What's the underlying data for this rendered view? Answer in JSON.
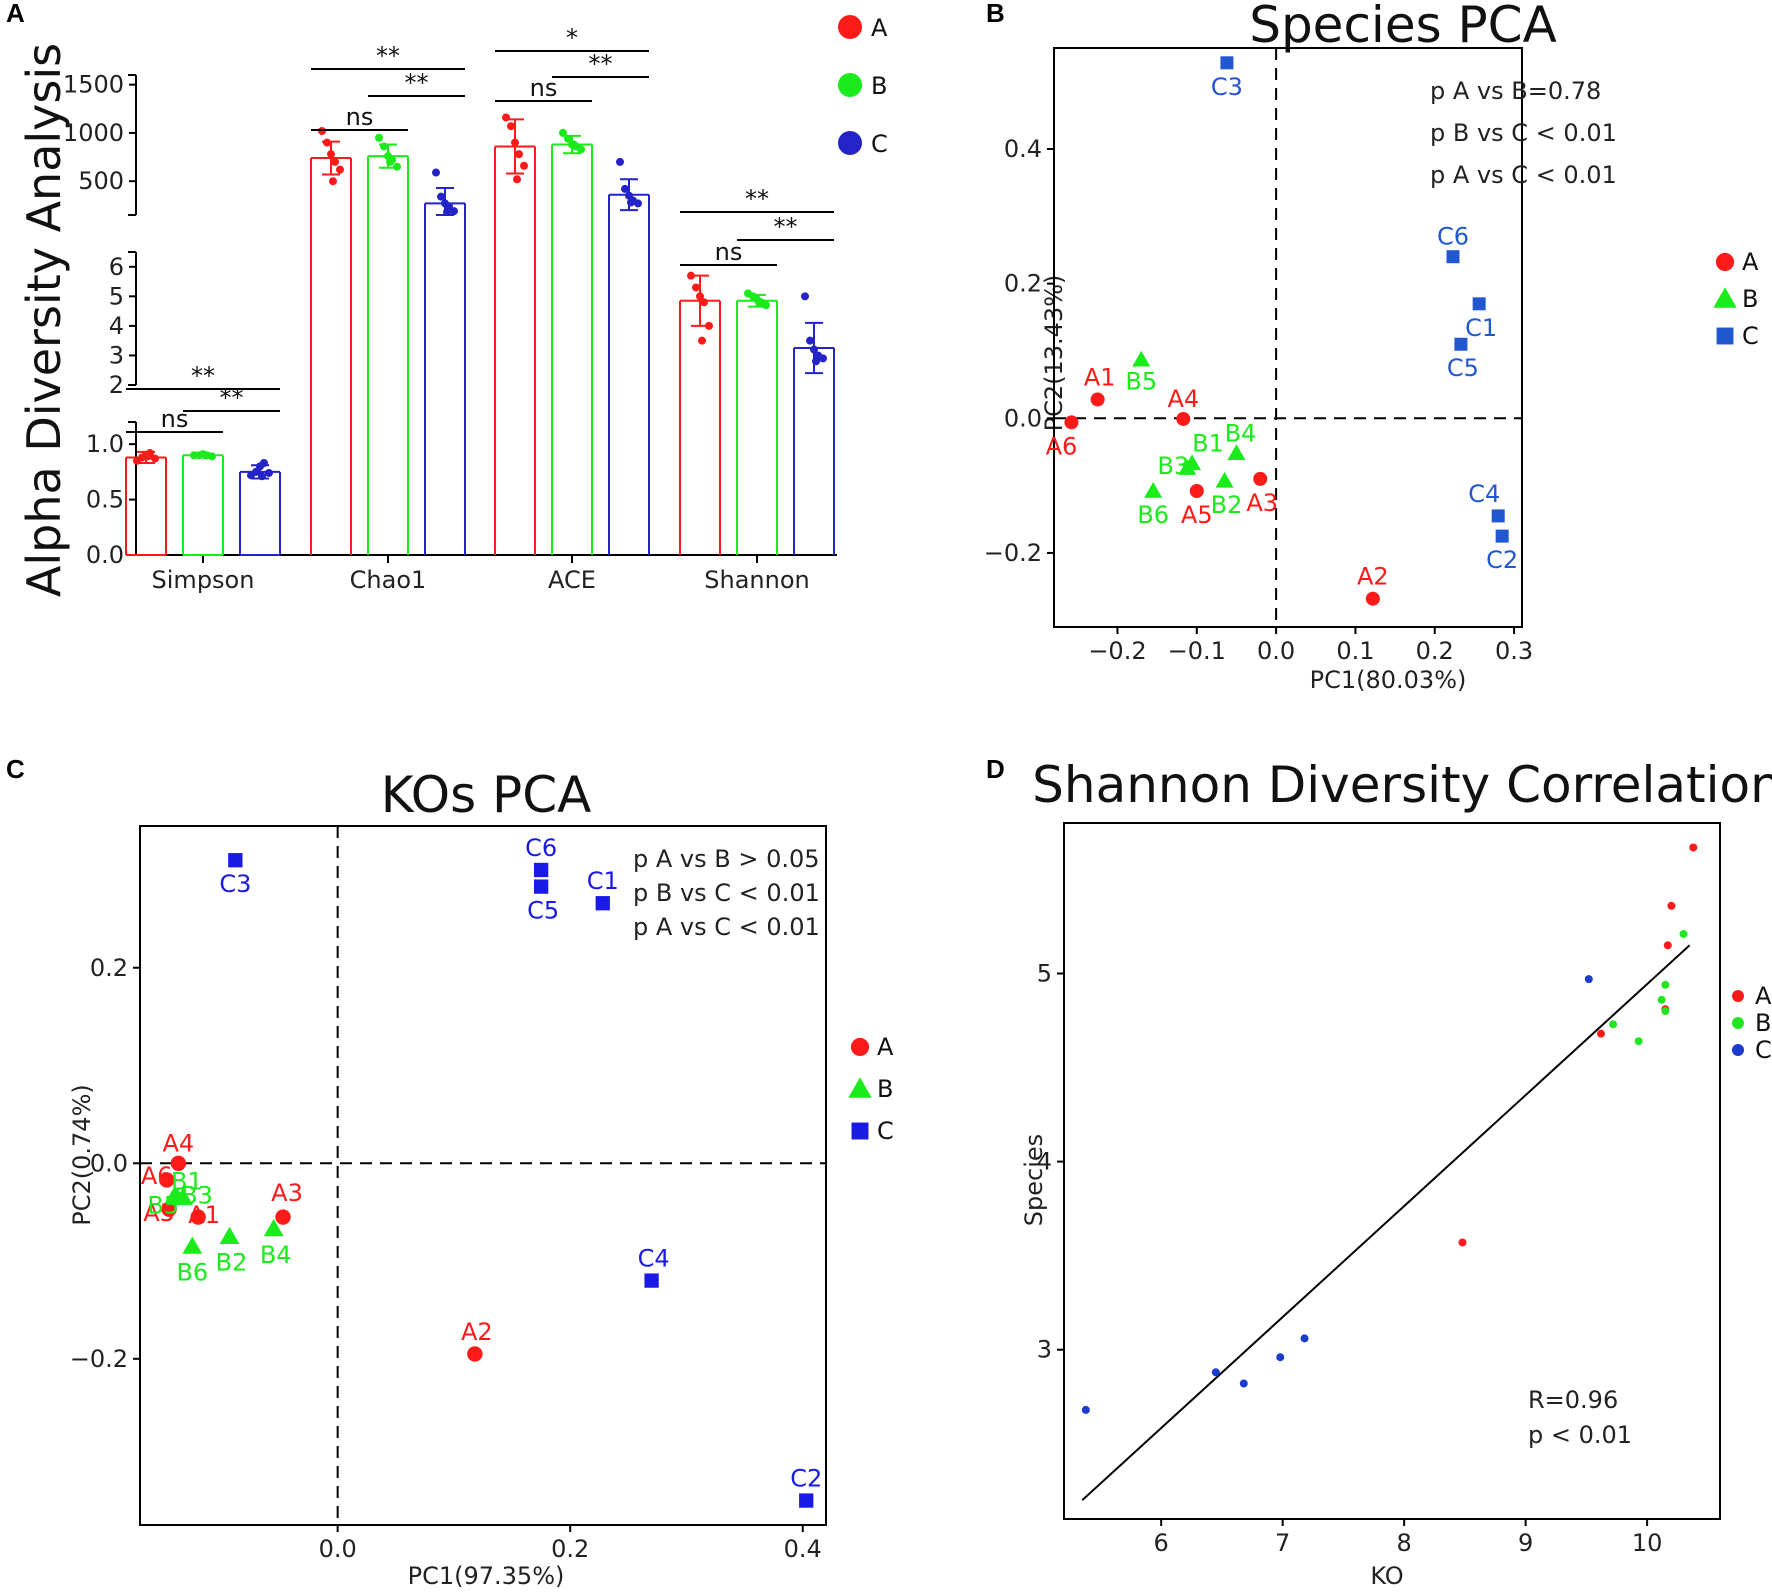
{
  "colors": {
    "A": "#ff1a1a",
    "B": "#1aeb1a",
    "C": "#1a1acc",
    "C_light": "#1a56d6"
  },
  "chart_data": [
    {
      "panel_label": "A",
      "type": "bar",
      "ylabel": "Alpha Diversity Analysis",
      "categories": [
        "Simpson",
        "Chao1",
        "ACE",
        "Shannon"
      ],
      "groups": [
        "A",
        "B",
        "C"
      ],
      "segments": [
        {
          "name": "low",
          "range": [
            0,
            1.2
          ],
          "ticks": [
            "0.0",
            "0.5",
            "1.0"
          ],
          "tick_values": [
            0,
            0.5,
            1.0
          ]
        },
        {
          "name": "mid",
          "range": [
            2,
            6.5
          ],
          "ticks": [
            "2",
            "3",
            "4",
            "5",
            "6"
          ],
          "tick_values": [
            2,
            3,
            4,
            5,
            6
          ]
        },
        {
          "name": "high",
          "range": [
            150,
            1600
          ],
          "ticks": [
            "500",
            "1000",
            "1500"
          ],
          "tick_values": [
            500,
            1000,
            1500
          ]
        }
      ],
      "series": [
        {
          "category": "Simpson",
          "segment": "low",
          "means": [
            0.88,
            0.9,
            0.75
          ],
          "sd": [
            0.05,
            0.01,
            0.06
          ],
          "points": [
            [
              0.85,
              0.88,
              0.9,
              0.92,
              0.87,
              0.89
            ],
            [
              0.9,
              0.9,
              0.91,
              0.9,
              0.89,
              0.9
            ],
            [
              0.72,
              0.75,
              0.8,
              0.83,
              0.74,
              0.71
            ]
          ]
        },
        {
          "category": "Chao1",
          "segment": "high",
          "means": [
            740,
            760,
            270
          ],
          "sd": [
            170,
            120,
            160
          ],
          "points": [
            [
              1020,
              900,
              780,
              700,
              620,
              500
            ],
            [
              950,
              860,
              760,
              720,
              650,
              700
            ],
            [
              590,
              340,
              270,
              240,
              190,
              180
            ]
          ]
        },
        {
          "category": "ACE",
          "segment": "high",
          "means": [
            860,
            880,
            360
          ],
          "sd": [
            280,
            90,
            160
          ],
          "points": [
            [
              1160,
              1070,
              900,
              780,
              660,
              520
            ],
            [
              1000,
              940,
              880,
              860,
              830,
              880
            ],
            [
              700,
              420,
              350,
              300,
              270,
              280
            ]
          ]
        },
        {
          "category": "Shannon",
          "segment": "mid",
          "means": [
            4.85,
            4.85,
            3.25
          ],
          "sd": [
            0.85,
            0.2,
            0.85
          ],
          "points": [
            [
              5.7,
              5.3,
              5.0,
              4.8,
              4.0,
              3.5
            ],
            [
              5.1,
              5.0,
              4.9,
              4.8,
              4.7,
              4.8
            ],
            [
              5.0,
              3.5,
              3.2,
              3.0,
              2.9,
              2.8
            ]
          ]
        }
      ],
      "significance": [
        {
          "category": "Simpson",
          "pair": "A-B",
          "label": "ns"
        },
        {
          "category": "Simpson",
          "pair": "B-C",
          "label": "**"
        },
        {
          "category": "Simpson",
          "pair": "A-C",
          "label": "**"
        },
        {
          "category": "Chao1",
          "pair": "A-B",
          "label": "ns"
        },
        {
          "category": "Chao1",
          "pair": "B-C",
          "label": "**"
        },
        {
          "category": "Chao1",
          "pair": "A-C",
          "label": "**"
        },
        {
          "category": "ACE",
          "pair": "A-B",
          "label": "ns"
        },
        {
          "category": "ACE",
          "pair": "B-C",
          "label": "**"
        },
        {
          "category": "ACE",
          "pair": "A-C",
          "label": "*"
        },
        {
          "category": "Shannon",
          "pair": "A-B",
          "label": "ns"
        },
        {
          "category": "Shannon",
          "pair": "B-C",
          "label": "**"
        },
        {
          "category": "Shannon",
          "pair": "A-C",
          "label": "**"
        }
      ],
      "legend": [
        "A",
        "B",
        "C"
      ]
    },
    {
      "panel_label": "B",
      "type": "scatter",
      "title": "Species PCA",
      "xlabel": "PC1(80.03%)",
      "ylabel": "PC2(13.43%)",
      "xlim": [
        -0.28,
        0.31
      ],
      "ylim": [
        -0.31,
        0.55
      ],
      "xticks": [
        -0.2,
        -0.1,
        0.0,
        0.1,
        0.2,
        0.3
      ],
      "xtick_labels": [
        "−0.2",
        "−0.1",
        "0.0",
        "0.1",
        "0.2",
        "0.3"
      ],
      "yticks": [
        -0.2,
        0.0,
        0.2,
        0.4
      ],
      "ytick_labels": [
        "−0.2",
        "0.0",
        "0.2",
        "0.4"
      ],
      "annotations": [
        "p A vs B=0.78",
        "p B vs C < 0.01",
        "p A vs C < 0.01"
      ],
      "points": [
        {
          "label": "A1",
          "group": "A",
          "x": -0.225,
          "y": 0.028
        },
        {
          "label": "A2",
          "group": "A",
          "x": 0.122,
          "y": -0.268
        },
        {
          "label": "A3",
          "group": "A",
          "x": -0.02,
          "y": -0.09
        },
        {
          "label": "A4",
          "group": "A",
          "x": -0.117,
          "y": -0.001
        },
        {
          "label": "A5",
          "group": "A",
          "x": -0.1,
          "y": -0.108
        },
        {
          "label": "A6",
          "group": "A",
          "x": -0.258,
          "y": -0.006
        },
        {
          "label": "B1",
          "group": "B",
          "x": -0.106,
          "y": -0.067
        },
        {
          "label": "B2",
          "group": "B",
          "x": -0.065,
          "y": -0.093
        },
        {
          "label": "B3",
          "group": "B",
          "x": -0.112,
          "y": -0.074
        },
        {
          "label": "B4",
          "group": "B",
          "x": -0.05,
          "y": -0.052
        },
        {
          "label": "B5",
          "group": "B",
          "x": -0.17,
          "y": 0.087
        },
        {
          "label": "B6",
          "group": "B",
          "x": -0.155,
          "y": -0.108
        },
        {
          "label": "C1",
          "group": "C",
          "x": 0.256,
          "y": 0.17
        },
        {
          "label": "C2",
          "group": "C",
          "x": 0.285,
          "y": -0.175
        },
        {
          "label": "C3",
          "group": "C",
          "x": -0.062,
          "y": 0.528
        },
        {
          "label": "C4",
          "group": "C",
          "x": 0.28,
          "y": -0.145
        },
        {
          "label": "C5",
          "group": "C",
          "x": 0.233,
          "y": 0.11
        },
        {
          "label": "C6",
          "group": "C",
          "x": 0.223,
          "y": 0.24
        }
      ],
      "legend": [
        "A",
        "B",
        "C"
      ]
    },
    {
      "panel_label": "C",
      "type": "scatter",
      "title": "KOs PCA",
      "xlabel": "PC1(97.35%)",
      "ylabel": "PC2(0.74%)",
      "xlim": [
        -0.17,
        0.42
      ],
      "ylim": [
        -0.37,
        0.345
      ],
      "xticks": [
        0.0,
        0.2,
        0.4
      ],
      "xtick_labels": [
        "0.0",
        "0.2",
        "0.4"
      ],
      "yticks": [
        -0.2,
        0.0,
        0.2
      ],
      "ytick_labels": [
        "−0.2",
        "0.0",
        "0.2"
      ],
      "annotations": [
        "p A vs B > 0.05",
        "p B vs C < 0.01",
        "p A vs C < 0.01"
      ],
      "points": [
        {
          "label": "A1",
          "group": "A",
          "x": -0.12,
          "y": -0.055
        },
        {
          "label": "A2",
          "group": "A",
          "x": 0.118,
          "y": -0.195
        },
        {
          "label": "A3",
          "group": "A",
          "x": -0.047,
          "y": -0.055
        },
        {
          "label": "A4",
          "group": "A",
          "x": -0.137,
          "y": 0.0
        },
        {
          "label": "A5",
          "group": "A",
          "x": -0.145,
          "y": -0.047
        },
        {
          "label": "A6",
          "group": "A",
          "x": -0.147,
          "y": -0.017
        },
        {
          "label": "B1",
          "group": "B",
          "x": -0.14,
          "y": -0.033
        },
        {
          "label": "B2",
          "group": "B",
          "x": -0.093,
          "y": -0.075
        },
        {
          "label": "B3",
          "group": "B",
          "x": -0.133,
          "y": -0.035
        },
        {
          "label": "B4",
          "group": "B",
          "x": -0.055,
          "y": -0.067
        },
        {
          "label": "B5",
          "group": "B",
          "x": -0.138,
          "y": -0.035
        },
        {
          "label": "B6",
          "group": "B",
          "x": -0.125,
          "y": -0.085
        },
        {
          "label": "C1",
          "group": "C",
          "x": 0.228,
          "y": 0.266
        },
        {
          "label": "C2",
          "group": "C",
          "x": 0.403,
          "y": -0.345
        },
        {
          "label": "C3",
          "group": "C",
          "x": -0.088,
          "y": 0.31
        },
        {
          "label": "C4",
          "group": "C",
          "x": 0.27,
          "y": -0.12
        },
        {
          "label": "C5",
          "group": "C",
          "x": 0.175,
          "y": 0.283
        },
        {
          "label": "C6",
          "group": "C",
          "x": 0.175,
          "y": 0.3
        }
      ],
      "label_offsets_note": "labels placed above markers except C5 and B-group which are below",
      "legend": [
        "A",
        "B",
        "C"
      ]
    },
    {
      "panel_label": "D",
      "type": "scatter",
      "title": "Shannon Diversity Correlation",
      "xlabel": "KO",
      "ylabel": "Species",
      "xlim": [
        5.2,
        10.6
      ],
      "ylim": [
        2.1,
        5.8
      ],
      "xticks": [
        6,
        7,
        8,
        9,
        10
      ],
      "xtick_labels": [
        "6",
        "7",
        "8",
        "9",
        "10"
      ],
      "yticks": [
        3,
        4,
        5
      ],
      "ytick_labels": [
        "3",
        "4",
        "5"
      ],
      "annotations": [
        "R=0.96",
        "p < 0.01"
      ],
      "fit_line": {
        "x": [
          5.35,
          10.35
        ],
        "y": [
          2.2,
          5.15
        ]
      },
      "points": [
        {
          "group": "A",
          "x": 10.38,
          "y": 5.67
        },
        {
          "group": "A",
          "x": 10.2,
          "y": 5.36
        },
        {
          "group": "A",
          "x": 10.17,
          "y": 5.15
        },
        {
          "group": "A",
          "x": 10.15,
          "y": 4.81
        },
        {
          "group": "A",
          "x": 9.62,
          "y": 4.68
        },
        {
          "group": "A",
          "x": 8.48,
          "y": 3.57
        },
        {
          "group": "B",
          "x": 10.3,
          "y": 5.21
        },
        {
          "group": "B",
          "x": 10.15,
          "y": 4.94
        },
        {
          "group": "B",
          "x": 10.12,
          "y": 4.86
        },
        {
          "group": "B",
          "x": 10.15,
          "y": 4.8
        },
        {
          "group": "B",
          "x": 9.72,
          "y": 4.73
        },
        {
          "group": "B",
          "x": 9.93,
          "y": 4.64
        },
        {
          "group": "C",
          "x": 9.52,
          "y": 4.97
        },
        {
          "group": "C",
          "x": 7.18,
          "y": 3.06
        },
        {
          "group": "C",
          "x": 6.98,
          "y": 2.96
        },
        {
          "group": "C",
          "x": 6.45,
          "y": 2.88
        },
        {
          "group": "C",
          "x": 6.68,
          "y": 2.82
        },
        {
          "group": "C",
          "x": 5.38,
          "y": 2.68
        }
      ],
      "legend": [
        "A",
        "B",
        "C"
      ]
    }
  ]
}
